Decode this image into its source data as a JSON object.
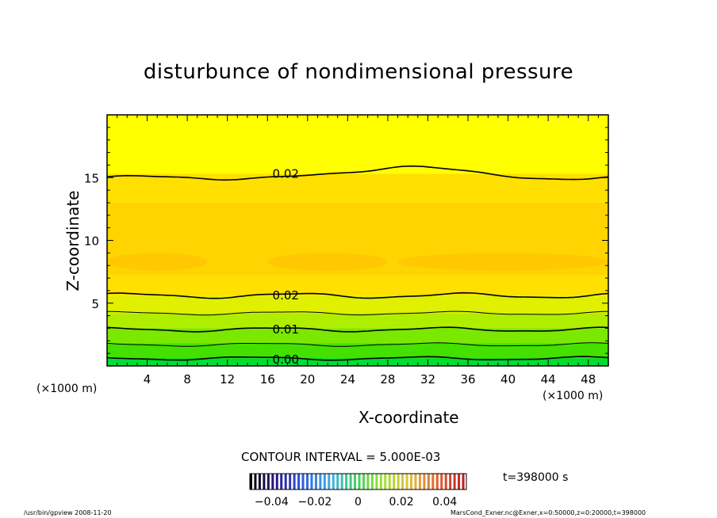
{
  "chart_data": {
    "type": "heatmap",
    "title": "disturbunce of nondimensional pressure",
    "xlabel": "X-coordinate",
    "ylabel": "Z-coordinate",
    "x_unit_label": "(×1000 m)",
    "xlim": [
      0,
      50
    ],
    "ylim": [
      0,
      20
    ],
    "x_ticks": [
      4,
      8,
      12,
      16,
      20,
      24,
      28,
      32,
      36,
      40,
      44,
      48
    ],
    "y_ticks": [
      5,
      10,
      15
    ],
    "contour_interval_text": "CONTOUR INTERVAL = 5.000E-03",
    "contour_levels": [
      0.0,
      0.005,
      0.01,
      0.015,
      0.02,
      0.025
    ],
    "contour_labels": [
      {
        "text": "0.02",
        "x": 16.5,
        "z": 15.3
      },
      {
        "text": "0.02",
        "x": 16.5,
        "z": 5.6
      },
      {
        "text": "0.01",
        "x": 16.5,
        "z": 2.9
      },
      {
        "text": "0.00",
        "x": 16.5,
        "z": 0.5
      }
    ],
    "field_bands": [
      {
        "z_range": [
          0.0,
          0.6
        ],
        "value_range": [
          0.0,
          0.005
        ],
        "color": "#00dd33"
      },
      {
        "z_range": [
          0.6,
          1.8
        ],
        "value_range": [
          0.005,
          0.01
        ],
        "color": "#44e000"
      },
      {
        "z_range": [
          1.8,
          3.0
        ],
        "value_range": [
          0.01,
          0.013
        ],
        "color": "#7ae800"
      },
      {
        "z_range": [
          3.0,
          4.2
        ],
        "value_range": [
          0.013,
          0.016
        ],
        "color": "#b0ee00"
      },
      {
        "z_range": [
          4.2,
          5.6
        ],
        "value_range": [
          0.016,
          0.02
        ],
        "color": "#e0f000"
      },
      {
        "z_range": [
          5.6,
          7.2
        ],
        "value_range": [
          0.02,
          0.022
        ],
        "color": "#ffe000"
      },
      {
        "z_range": [
          7.2,
          13.0
        ],
        "value_range": [
          0.022,
          0.024
        ],
        "color": "#ffd400"
      },
      {
        "z_range": [
          13.0,
          15.3
        ],
        "value_range": [
          0.02,
          0.022
        ],
        "color": "#ffe000"
      },
      {
        "z_range": [
          15.3,
          20.0
        ],
        "value_range": [
          0.015,
          0.02
        ],
        "color": "#ffff00"
      }
    ],
    "colorbar": {
      "tick_labels": [
        "−0.04",
        "−0.02",
        "0",
        "0.02",
        "0.04"
      ],
      "tick_values": [
        -0.04,
        -0.02,
        0,
        0.02,
        0.04
      ],
      "range": [
        -0.05,
        0.05
      ]
    },
    "time_label": "t=398000 s"
  },
  "footer": {
    "left": "/usr/bin/gpview   2008-11-20",
    "right": "MarsCond_Exner.nc@Exner,x=0:50000,z=0:20000,t=398000"
  }
}
